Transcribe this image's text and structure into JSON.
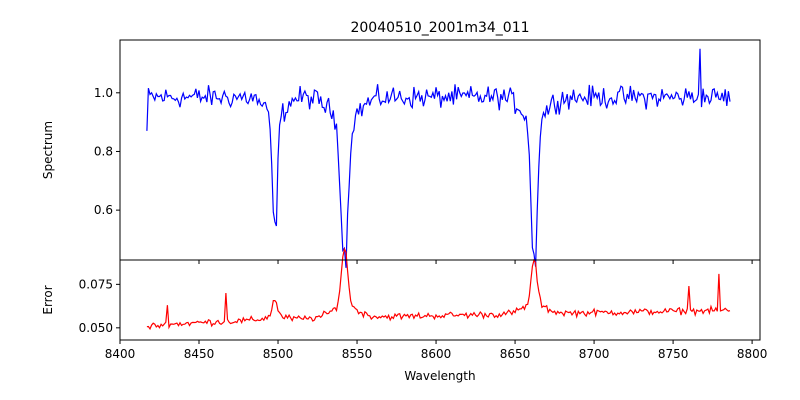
{
  "chart_data": [
    {
      "type": "line",
      "title": "20040510_2001m34_011",
      "xlabel": "",
      "ylabel": "Spectrum",
      "xlim": [
        8400,
        8805
      ],
      "ylim": [
        0.43,
        1.18
      ],
      "xticks": [
        8400,
        8450,
        8500,
        8550,
        8600,
        8650,
        8700,
        8750,
        8800
      ],
      "yticks": [
        0.6,
        0.8,
        1.0
      ],
      "ytick_labels": [
        "0.6",
        "0.8",
        "1.0"
      ],
      "grid": false,
      "color": "#0000ff",
      "series": [
        {
          "x_start": 8417,
          "x_end": 8786,
          "x_step": 1,
          "continuum": 0.985,
          "noise": 0.055,
          "absorption_lines": [
            {
              "center": 8498.0,
              "depth": 0.42,
              "width": 1.4
            },
            {
              "center": 8542.1,
              "depth": 0.5,
              "width": 2.2
            },
            {
              "center": 8662.1,
              "depth": 0.53,
              "width": 1.8
            }
          ],
          "values_sample": [
            {
              "x": 8417,
              "y": 0.87
            },
            {
              "x": 8498,
              "y": 0.56
            },
            {
              "x": 8542,
              "y": 0.47
            },
            {
              "x": 8662,
              "y": 0.45
            },
            {
              "x": 8767,
              "y": 1.15
            },
            {
              "x": 8786,
              "y": 0.97
            }
          ]
        }
      ]
    },
    {
      "type": "line",
      "title": "",
      "xlabel": "Wavelength",
      "ylabel": "Error",
      "xlim": [
        8400,
        8805
      ],
      "ylim": [
        0.043,
        0.089
      ],
      "xticks": [
        8400,
        8450,
        8500,
        8550,
        8600,
        8650,
        8700,
        8750,
        8800
      ],
      "xtick_labels": [
        "8400",
        "8450",
        "8500",
        "8550",
        "8600",
        "8650",
        "8700",
        "8750",
        "8800"
      ],
      "yticks": [
        0.05,
        0.075
      ],
      "ytick_labels": [
        "0.050",
        "0.075"
      ],
      "grid": false,
      "color": "#ff0000",
      "series": [
        {
          "x_start": 8417,
          "x_end": 8786,
          "x_step": 1,
          "baseline_start": 0.05,
          "baseline_end": 0.06,
          "noise": 0.0028,
          "emission_peaks": [
            {
              "center": 8498.0,
              "height": 0.01,
              "width": 1.5
            },
            {
              "center": 8542.1,
              "height": 0.033,
              "width": 2.0
            },
            {
              "center": 8662.1,
              "height": 0.026,
              "width": 1.8
            }
          ],
          "spikes": [
            {
              "x": 8430,
              "y": 0.063
            },
            {
              "x": 8467,
              "y": 0.07
            },
            {
              "x": 8760,
              "y": 0.074
            },
            {
              "x": 8779,
              "y": 0.081
            }
          ]
        }
      ]
    }
  ]
}
